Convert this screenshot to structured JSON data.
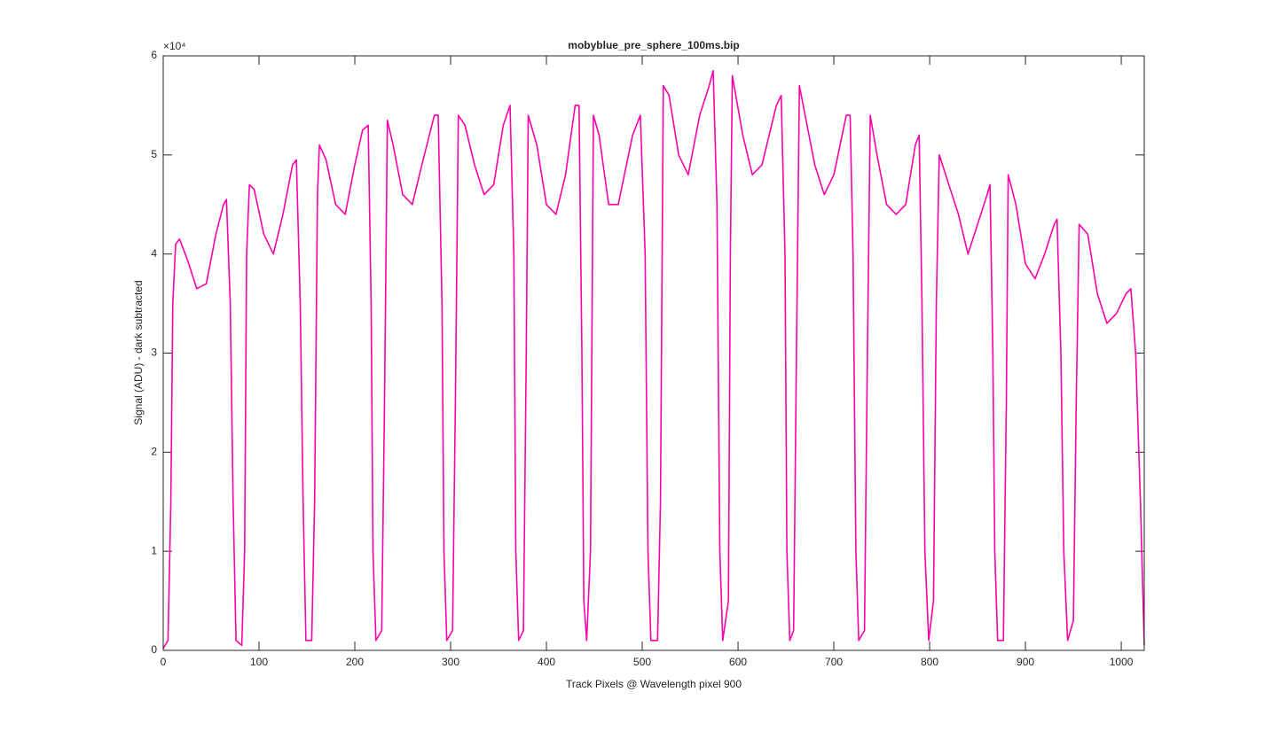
{
  "chart_data": {
    "type": "line",
    "title": "mobyblue_pre_sphere_100ms.bip",
    "x_label": "Track Pixels @ Wavelength pixel 900",
    "y_label": "Signal (ADU) - dark subtracted",
    "y_scale_label": "×10⁴",
    "xlim": [
      0,
      1024
    ],
    "ylim": [
      0,
      60000
    ],
    "xticks": [
      0,
      100,
      200,
      300,
      400,
      500,
      600,
      700,
      800,
      900,
      1000
    ],
    "yticks": [
      {
        "value": 0,
        "label": "0"
      },
      {
        "value": 10000,
        "label": "1"
      },
      {
        "value": 20000,
        "label": "2"
      },
      {
        "value": 30000,
        "label": "3"
      },
      {
        "value": 40000,
        "label": "4"
      },
      {
        "value": 50000,
        "label": "5"
      },
      {
        "value": 60000,
        "label": "6"
      }
    ],
    "x": [
      0,
      5,
      8,
      10,
      13,
      17,
      25,
      35,
      45,
      55,
      63,
      66,
      70,
      73,
      76,
      82,
      85,
      87,
      90,
      95,
      105,
      115,
      125,
      135,
      139,
      143,
      146,
      149,
      155,
      158,
      161,
      163,
      170,
      180,
      190,
      200,
      208,
      214,
      217,
      219,
      222,
      228,
      231,
      234,
      240,
      250,
      260,
      270,
      283,
      287,
      291,
      293,
      296,
      302,
      305,
      308,
      315,
      325,
      335,
      345,
      355,
      362,
      366,
      368,
      371,
      376,
      379,
      381,
      390,
      400,
      410,
      420,
      430,
      434,
      437,
      439,
      442,
      446,
      449,
      455,
      465,
      475,
      490,
      498,
      503,
      506,
      509,
      516,
      519,
      522,
      528,
      538,
      548,
      560,
      570,
      574,
      578,
      581,
      584,
      590,
      592,
      594,
      605,
      615,
      625,
      640,
      645,
      649,
      651,
      654,
      658,
      661,
      664,
      670,
      680,
      690,
      700,
      713,
      717,
      720,
      723,
      726,
      732,
      735,
      738,
      745,
      755,
      765,
      775,
      785,
      789,
      792,
      795,
      799,
      804,
      807,
      810,
      820,
      830,
      840,
      850,
      860,
      863,
      866,
      868,
      871,
      877,
      880,
      882,
      890,
      900,
      910,
      920,
      930,
      933,
      937,
      940,
      944,
      950,
      953,
      956,
      965,
      975,
      985,
      995,
      1005,
      1010,
      1015,
      1020,
      1024
    ],
    "series": [
      {
        "name": "track",
        "color": "#ff00aa",
        "values": [
          200,
          1000,
          15000,
          35000,
          41000,
          41500,
          39500,
          36500,
          37000,
          42000,
          45000,
          45500,
          35000,
          15000,
          1000,
          500,
          10000,
          40000,
          47000,
          46500,
          42000,
          40000,
          44000,
          49000,
          49500,
          35000,
          15000,
          1000,
          1000,
          15000,
          46000,
          51000,
          49500,
          45000,
          44000,
          49000,
          52500,
          53000,
          35000,
          10000,
          1000,
          2000,
          25000,
          53500,
          51000,
          46000,
          45000,
          49000,
          54000,
          54000,
          35000,
          10000,
          1000,
          2000,
          25000,
          54000,
          53000,
          49000,
          46000,
          47000,
          53000,
          55000,
          40000,
          10000,
          1000,
          2000,
          30000,
          54000,
          51000,
          45000,
          44000,
          48000,
          55000,
          55000,
          30000,
          5000,
          1000,
          10000,
          54000,
          52000,
          45000,
          45000,
          52000,
          54000,
          40000,
          10000,
          1000,
          1000,
          15000,
          57000,
          56000,
          50000,
          48000,
          54000,
          57000,
          58500,
          45000,
          10000,
          1000,
          5000,
          40000,
          58000,
          52000,
          48000,
          49000,
          55000,
          56000,
          40000,
          10000,
          1000,
          2000,
          30000,
          57000,
          54000,
          49000,
          46000,
          48000,
          54000,
          54000,
          40000,
          10000,
          1000,
          2000,
          30000,
          54000,
          50000,
          45000,
          44000,
          45000,
          51000,
          52000,
          35000,
          10000,
          1000,
          5000,
          35000,
          50000,
          47000,
          44000,
          40000,
          43000,
          46000,
          47000,
          30000,
          10000,
          1000,
          1000,
          25000,
          48000,
          45000,
          39000,
          37500,
          40000,
          43000,
          43500,
          30000,
          10000,
          1000,
          3000,
          25000,
          43000,
          42000,
          36000,
          33000,
          34000,
          36000,
          36500,
          30000,
          15000,
          500
        ]
      }
    ]
  }
}
